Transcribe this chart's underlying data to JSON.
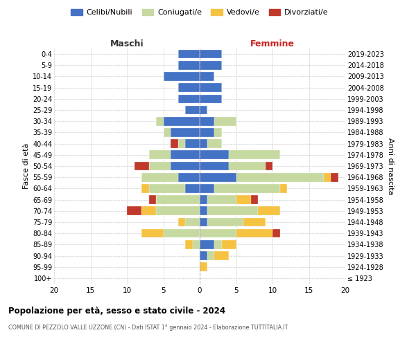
{
  "age_groups": [
    "100+",
    "95-99",
    "90-94",
    "85-89",
    "80-84",
    "75-79",
    "70-74",
    "65-69",
    "60-64",
    "55-59",
    "50-54",
    "45-49",
    "40-44",
    "35-39",
    "30-34",
    "25-29",
    "20-24",
    "15-19",
    "10-14",
    "5-9",
    "0-4"
  ],
  "birth_years": [
    "≤ 1923",
    "1924-1928",
    "1929-1933",
    "1934-1938",
    "1939-1943",
    "1944-1948",
    "1949-1953",
    "1954-1958",
    "1959-1963",
    "1964-1968",
    "1969-1973",
    "1974-1978",
    "1979-1983",
    "1984-1988",
    "1989-1993",
    "1994-1998",
    "1999-2003",
    "2004-2008",
    "2009-2013",
    "2014-2018",
    "2019-2023"
  ],
  "colors": {
    "celibi": "#4472c4",
    "coniugati": "#c6d9a0",
    "vedovi": "#f5c242",
    "divorziati": "#c0392b"
  },
  "maschi": {
    "celibi": [
      0,
      0,
      0,
      0,
      0,
      0,
      0,
      0,
      2,
      3,
      4,
      4,
      2,
      4,
      5,
      2,
      3,
      3,
      5,
      3,
      3
    ],
    "coniugati": [
      0,
      0,
      0,
      1,
      5,
      2,
      6,
      6,
      5,
      5,
      3,
      3,
      1,
      1,
      1,
      0,
      0,
      0,
      0,
      0,
      0
    ],
    "vedovi": [
      0,
      0,
      0,
      1,
      3,
      1,
      2,
      0,
      1,
      0,
      0,
      0,
      0,
      0,
      0,
      0,
      0,
      0,
      0,
      0,
      0
    ],
    "divorziati": [
      0,
      0,
      0,
      0,
      0,
      0,
      2,
      1,
      0,
      0,
      2,
      0,
      1,
      0,
      0,
      0,
      0,
      0,
      0,
      0,
      0
    ]
  },
  "femmine": {
    "celibi": [
      0,
      0,
      1,
      2,
      0,
      1,
      1,
      1,
      2,
      5,
      4,
      4,
      1,
      2,
      2,
      1,
      3,
      3,
      2,
      3,
      3
    ],
    "coniugati": [
      0,
      0,
      1,
      1,
      5,
      5,
      7,
      4,
      9,
      12,
      5,
      7,
      2,
      1,
      3,
      0,
      0,
      0,
      0,
      0,
      0
    ],
    "vedovi": [
      0,
      1,
      2,
      2,
      5,
      3,
      3,
      2,
      1,
      1,
      0,
      0,
      0,
      0,
      0,
      0,
      0,
      0,
      0,
      0,
      0
    ],
    "divorziati": [
      0,
      0,
      0,
      0,
      1,
      0,
      0,
      1,
      0,
      1,
      1,
      0,
      0,
      0,
      0,
      0,
      0,
      0,
      0,
      0,
      0
    ]
  },
  "title": "Popolazione per età, sesso e stato civile - 2024",
  "subtitle": "COMUNE DI PEZZOLO VALLE UZZONE (CN) - Dati ISTAT 1° gennaio 2024 - Elaborazione TUTTITALIA.IT",
  "xlabel_left": "Maschi",
  "xlabel_right": "Femmine",
  "ylabel_left": "Fasce di età",
  "ylabel_right": "Anni di nascita",
  "xlim": 20,
  "legend_labels": [
    "Celibi/Nubili",
    "Coniugati/e",
    "Vedovi/e",
    "Divorziati/e"
  ],
  "bg_color": "#ffffff",
  "grid_color": "#cccccc"
}
